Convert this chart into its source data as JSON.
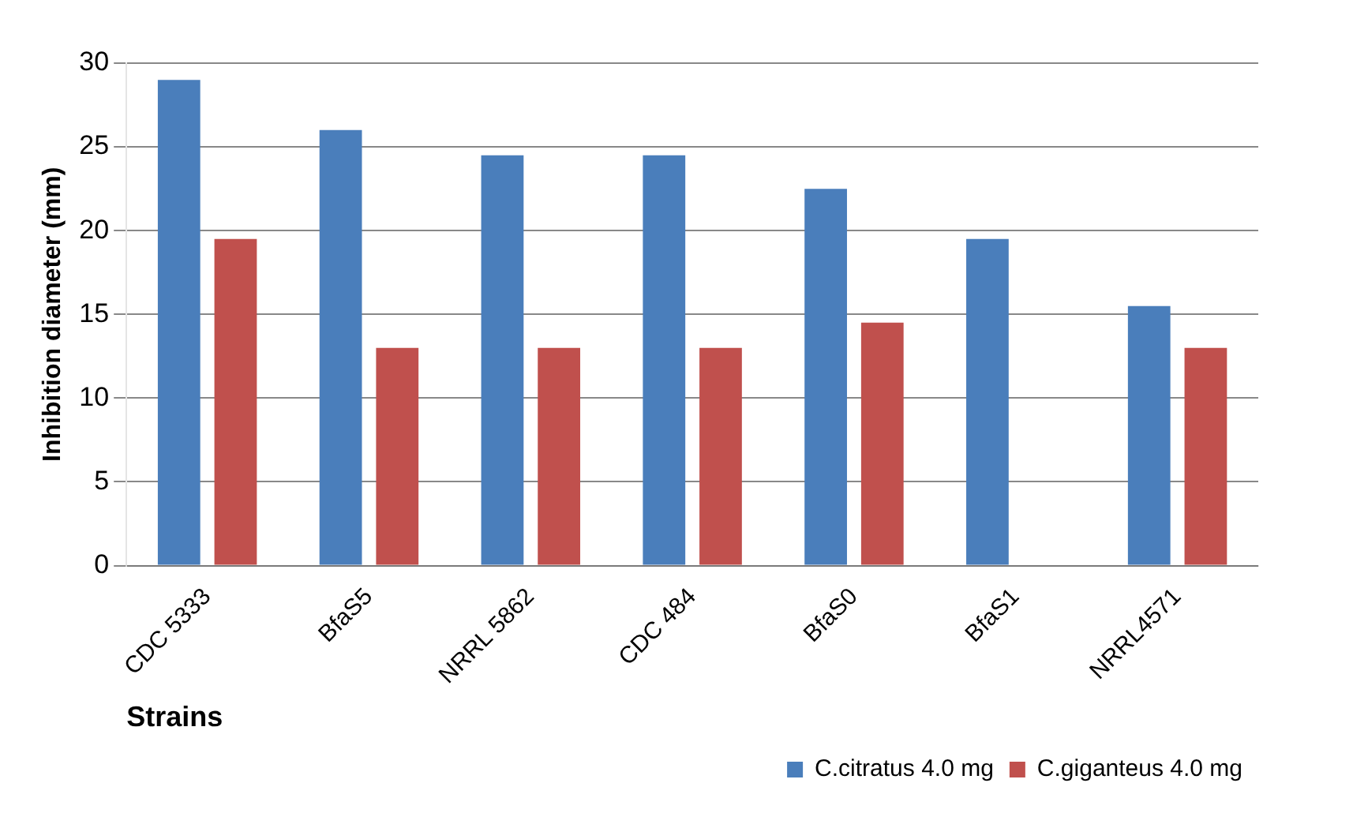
{
  "chart_data": {
    "type": "bar",
    "xlabel": "Strains",
    "ylabel": "Inhibition diameter (mm)",
    "categories": [
      "CDC 5333",
      "BfaS5",
      "NRRL 5862",
      "CDC 484",
      "BfaS0",
      "BfaS1",
      "NRRL4571"
    ],
    "series": [
      {
        "name": "C.citratus 4.0 mg",
        "color": "#4a7ebb",
        "values": [
          29,
          26,
          24.5,
          24.5,
          22.5,
          19.5,
          15.5
        ]
      },
      {
        "name": "C.giganteus 4.0 mg",
        "color": "#c0504d",
        "values": [
          19.5,
          13,
          13,
          13,
          14.5,
          0,
          13
        ]
      }
    ],
    "ylim": [
      0,
      30
    ],
    "yticks": [
      0,
      5,
      10,
      15,
      20,
      25,
      30
    ],
    "grid": "y",
    "legend": "bottom right"
  }
}
